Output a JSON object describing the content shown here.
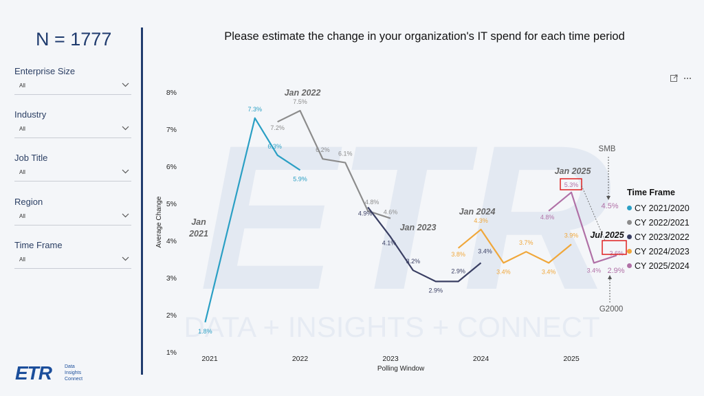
{
  "sidebar": {
    "n_label": "N = 1777",
    "filters": [
      {
        "label": "Enterprise Size",
        "value": "All"
      },
      {
        "label": "Industry",
        "value": "All"
      },
      {
        "label": "Job Title",
        "value": "All"
      },
      {
        "label": "Region",
        "value": "All"
      },
      {
        "label": "Time Frame",
        "value": "All"
      }
    ]
  },
  "logo": {
    "mark": "ETR",
    "tagline": [
      "Data",
      "Insights",
      "Connect"
    ]
  },
  "watermark": {
    "big": "ETR",
    "tagline": "DATA + INSIGHTS + CONNECT"
  },
  "icons": {
    "expand": "expand-icon",
    "more": "more-options-icon"
  },
  "chart_data": {
    "type": "line",
    "title": "Please estimate the change in your organization's IT spend for each time period",
    "xlabel": "Polling Window",
    "ylabel": "Average Change",
    "x_ticks": [
      "2021",
      "2022",
      "2023",
      "2024",
      "2025"
    ],
    "y_ticks": [
      "1%",
      "2%",
      "3%",
      "4%",
      "5%",
      "6%",
      "7%",
      "8%"
    ],
    "ylim": [
      1,
      8
    ],
    "legend_title": "Time Frame",
    "legend_position": "right",
    "series": [
      {
        "name": "CY 2021/2020",
        "color": "#2a9fc4",
        "x": [
          2020.95,
          2021.5,
          2021.75,
          2022.0
        ],
        "values": [
          1.8,
          7.3,
          6.3,
          5.9
        ],
        "labels": [
          "1.8%",
          "7.3%",
          "6.3%",
          "5.9%"
        ]
      },
      {
        "name": "CY 2022/2021",
        "color": "#8c8c8c",
        "x": [
          2021.75,
          2022.0,
          2022.25,
          2022.5,
          2022.75,
          2023.0
        ],
        "values": [
          7.2,
          7.5,
          6.2,
          6.1,
          4.8,
          4.6
        ],
        "labels": [
          "7.2%",
          "7.5%",
          "6.2%",
          "6.1%",
          "4.8%",
          "4.6%"
        ]
      },
      {
        "name": "CY 2023/2022",
        "color": "#3a3f63",
        "x": [
          2022.75,
          2023.0,
          2023.25,
          2023.5,
          2023.75,
          2024.0
        ],
        "values": [
          4.9,
          4.1,
          3.2,
          2.9,
          2.9,
          3.4
        ],
        "labels": [
          "4.9%",
          "4.1%",
          "3.2%",
          "2.9%",
          "2.9%",
          "3.4%"
        ]
      },
      {
        "name": "CY 2024/2023",
        "color": "#f0a73a",
        "x": [
          2023.75,
          2024.0,
          2024.25,
          2024.5,
          2024.75,
          2025.0
        ],
        "values": [
          3.8,
          4.3,
          3.4,
          3.7,
          3.4,
          3.9
        ],
        "labels": [
          "3.8%",
          "4.3%",
          "3.4%",
          "3.7%",
          "3.4%",
          "3.9%"
        ]
      },
      {
        "name": "CY 2025/2024",
        "color": "#b070a6",
        "x": [
          2024.75,
          2025.0,
          2025.25,
          2025.5
        ],
        "values": [
          4.8,
          5.3,
          3.4,
          3.6
        ],
        "labels": [
          "4.8%",
          "5.3%",
          "3.4%",
          "3.6%"
        ]
      }
    ],
    "annotations": {
      "jan_2021": [
        "Jan",
        "2021"
      ],
      "jan_2022": "Jan 2022",
      "jan_2023": "Jan 2023",
      "jan_2024": "Jan 2024",
      "jan_2025": "Jan 2025",
      "jul_2025": "Jul 2025",
      "smb": {
        "label": "SMB",
        "value": "4.5%"
      },
      "g2000": {
        "label": "G2000",
        "value": "2.9%"
      }
    }
  }
}
